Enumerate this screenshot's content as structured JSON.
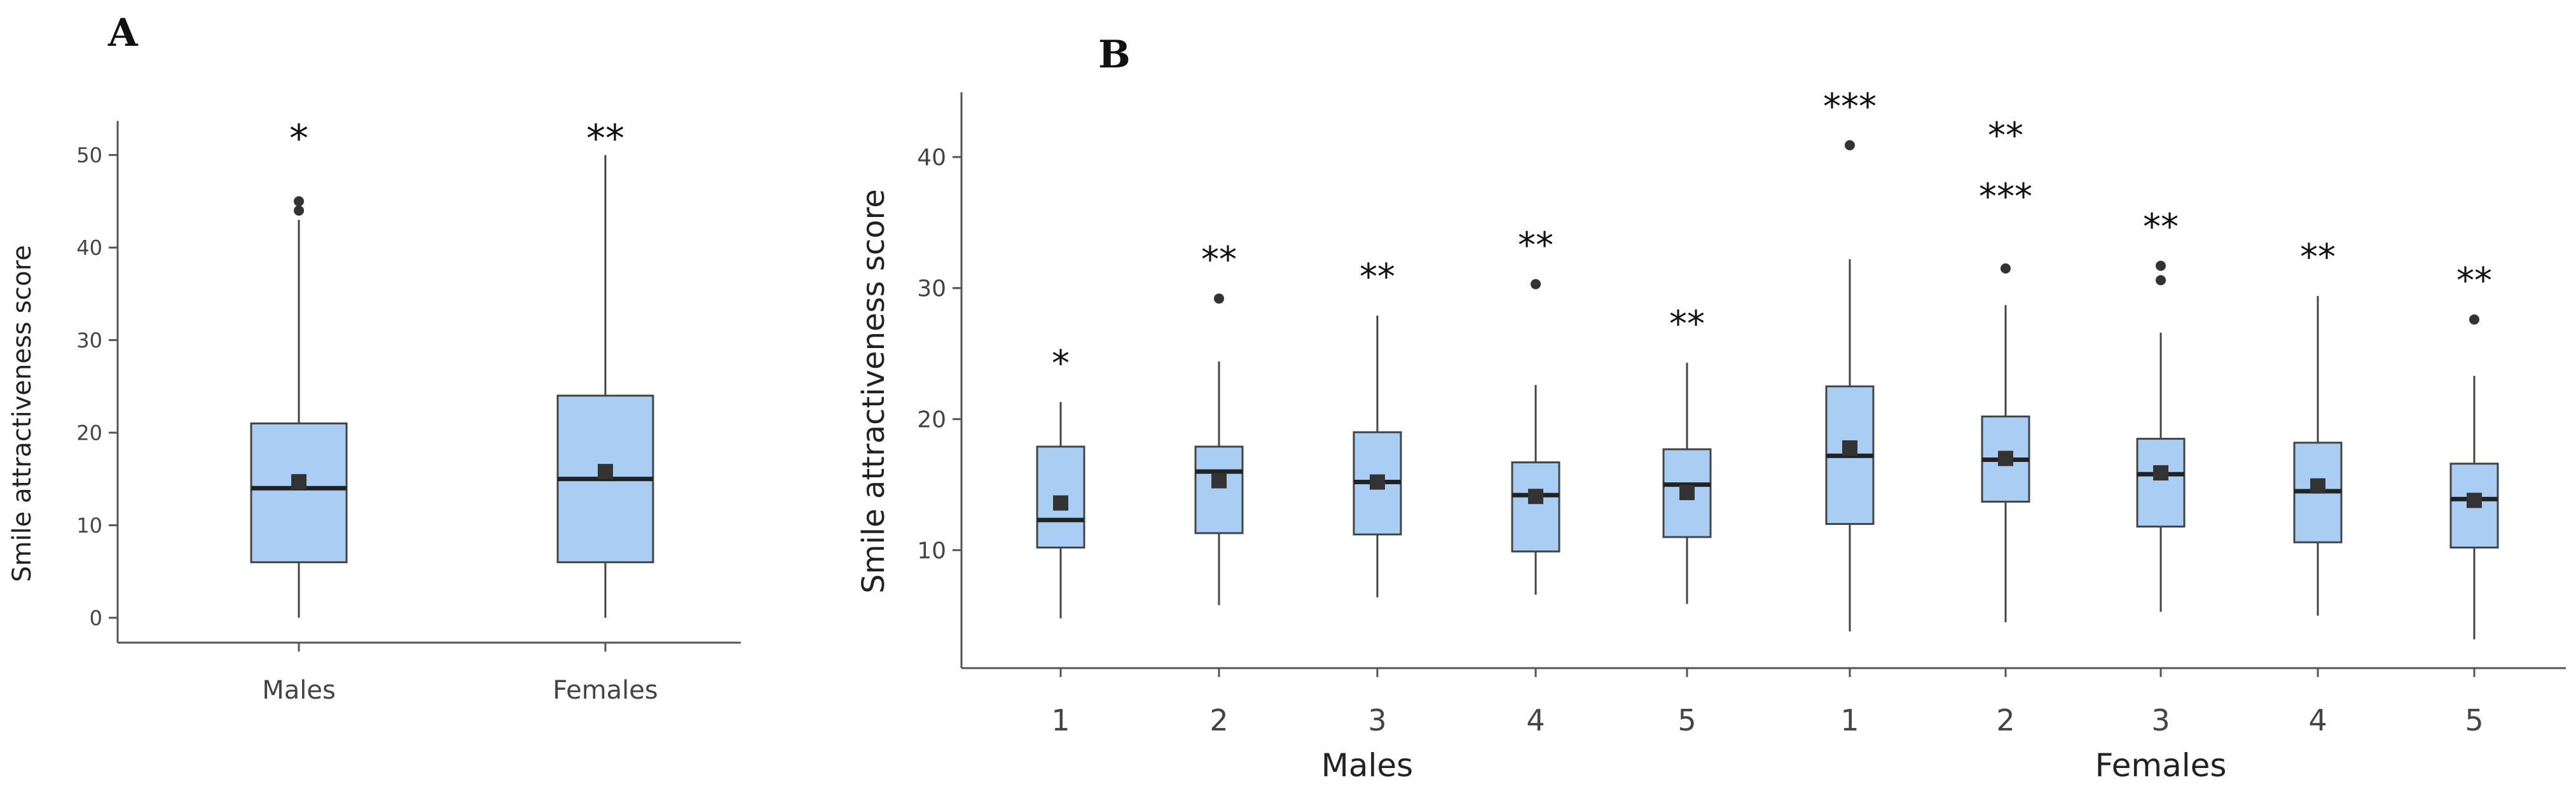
{
  "chart_data": [
    {
      "panel_label": "A",
      "type": "box",
      "ylabel": "Smile attractiveness score",
      "xlabel": "",
      "ylim": [
        -2,
        53
      ],
      "yticks": [
        0,
        10,
        20,
        30,
        40,
        50
      ],
      "categories": [
        "Males",
        "Females"
      ],
      "box_color": "#a9cdf3",
      "boxes": [
        {
          "category": "Males",
          "min": 0,
          "q1": 6,
          "median": 14,
          "q3": 21,
          "max": 43,
          "mean": 14.7,
          "outliers": [
            44,
            45
          ],
          "significance": "*"
        },
        {
          "category": "Females",
          "min": 0,
          "q1": 6,
          "median": 15,
          "q3": 24,
          "max": 50,
          "mean": 15.8,
          "outliers": [],
          "significance": "**"
        }
      ]
    },
    {
      "panel_label": "B",
      "type": "box",
      "ylabel": "Smile attractiveness score",
      "ylim": [
        1,
        43
      ],
      "yticks": [
        10,
        20,
        30,
        40
      ],
      "groups": [
        "Males",
        "Females"
      ],
      "categories": [
        "1",
        "2",
        "3",
        "4",
        "5",
        "1",
        "2",
        "3",
        "4",
        "5"
      ],
      "box_color": "#a9cdf3",
      "boxes": [
        {
          "group": "Males",
          "category": "1",
          "min": 4.8,
          "q1": 10.2,
          "median": 12.3,
          "q3": 17.9,
          "max": 21.3,
          "mean": 13.6,
          "outliers": [],
          "significance": [
            "*"
          ]
        },
        {
          "group": "Males",
          "category": "2",
          "min": 5.8,
          "q1": 11.3,
          "median": 16.0,
          "q3": 17.9,
          "max": 24.4,
          "mean": 15.3,
          "outliers": [
            29.2
          ],
          "significance": [
            "**"
          ]
        },
        {
          "group": "Males",
          "category": "3",
          "min": 6.4,
          "q1": 11.2,
          "median": 15.2,
          "q3": 19.0,
          "max": 27.9,
          "mean": 15.2,
          "outliers": [],
          "significance": [
            "**"
          ]
        },
        {
          "group": "Males",
          "category": "4",
          "min": 6.6,
          "q1": 9.9,
          "median": 14.2,
          "q3": 16.7,
          "max": 22.6,
          "mean": 14.1,
          "outliers": [
            30.3
          ],
          "significance": [
            "**"
          ]
        },
        {
          "group": "Males",
          "category": "5",
          "min": 5.9,
          "q1": 11.0,
          "median": 15.0,
          "q3": 17.7,
          "max": 24.3,
          "mean": 14.4,
          "outliers": [],
          "significance": [
            "**"
          ]
        },
        {
          "group": "Females",
          "category": "1",
          "min": 3.8,
          "q1": 12.0,
          "median": 17.2,
          "q3": 22.5,
          "max": 32.2,
          "mean": 17.8,
          "outliers": [
            40.9
          ],
          "significance": [
            "***"
          ]
        },
        {
          "group": "Females",
          "category": "2",
          "min": 4.5,
          "q1": 13.7,
          "median": 16.9,
          "q3": 20.2,
          "max": 28.7,
          "mean": 17.0,
          "outliers": [
            31.5
          ],
          "significance": [
            "**",
            "***"
          ]
        },
        {
          "group": "Females",
          "category": "3",
          "min": 5.3,
          "q1": 11.8,
          "median": 15.8,
          "q3": 18.5,
          "max": 26.6,
          "mean": 15.9,
          "outliers": [
            30.6,
            31.7
          ],
          "significance": [
            "**"
          ]
        },
        {
          "group": "Females",
          "category": "4",
          "min": 5.0,
          "q1": 10.6,
          "median": 14.5,
          "q3": 18.2,
          "max": 29.4,
          "mean": 14.9,
          "outliers": [],
          "significance": [
            "**"
          ]
        },
        {
          "group": "Females",
          "category": "5",
          "min": 3.2,
          "q1": 10.2,
          "median": 13.9,
          "q3": 16.6,
          "max": 23.3,
          "mean": 13.8,
          "outliers": [
            27.6
          ],
          "significance": [
            "**"
          ]
        }
      ]
    }
  ]
}
